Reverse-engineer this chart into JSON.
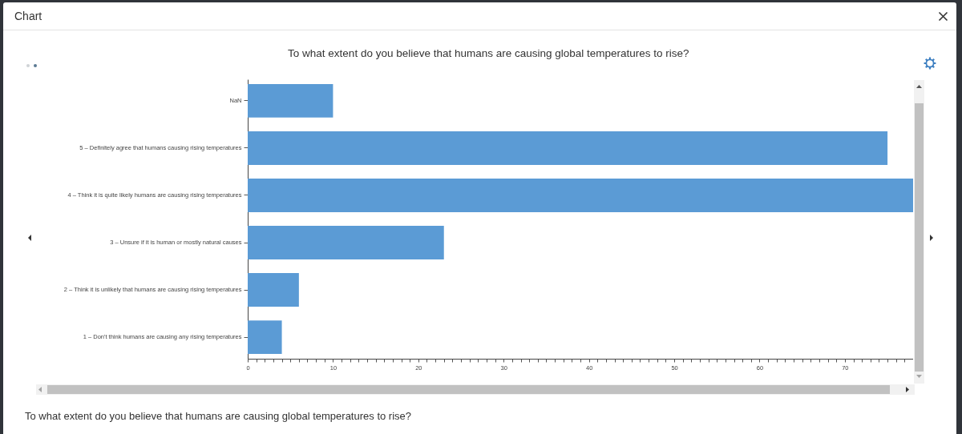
{
  "chart_data": {
    "type": "bar",
    "orientation": "horizontal",
    "title": "To what extent do you believe that humans are causing global temperatures to rise?",
    "annotations": [
      "Chart",
      "To what extent do you believe that humans are causing global temperatures to rise?"
    ],
    "categories": [
      "NaN",
      "5 – Definitely agree that humans causing rising temperatures",
      "4 – Think it is quite likely humans are causing rising temperatures",
      "3 – Unsure if it is human or mostly natural causes",
      "2 – Think it is unlikely that humans are causing rising temperatures",
      "1 – Don't think humans are causing any rising temperatures"
    ],
    "values": [
      10,
      75,
      78,
      23,
      6,
      4
    ],
    "color": "#5b9bd5",
    "xlim": [
      0,
      78
    ],
    "xticks": [
      0,
      {
        "value": 1,
        "label": null
      },
      {
        "value": 2,
        "label": null
      },
      {
        "value": 3,
        "label": null
      },
      {
        "value": 4,
        "label": null
      },
      {
        "value": 5,
        "label": null
      },
      {
        "value": 6,
        "label": null
      },
      {
        "value": 7,
        "label": null
      },
      {
        "value": 8,
        "label": null
      },
      {
        "value": 9,
        "label": null
      },
      10,
      {
        "value": 11,
        "label": null
      },
      {
        "value": 12,
        "label": null
      },
      {
        "value": 13,
        "label": null
      },
      {
        "value": 14,
        "label": null
      },
      {
        "value": 15,
        "label": null
      },
      {
        "value": 16,
        "label": null
      },
      {
        "value": 17,
        "label": null
      },
      {
        "value": 18,
        "label": null
      },
      {
        "value": 19,
        "label": null
      },
      20,
      {
        "value": 21,
        "label": null
      },
      {
        "value": 22,
        "label": null
      },
      {
        "value": 23,
        "label": null
      },
      {
        "value": 24,
        "label": null
      },
      {
        "value": 25,
        "label": null
      },
      {
        "value": 26,
        "label": null
      },
      {
        "value": 27,
        "label": null
      },
      {
        "value": 28,
        "label": null
      },
      {
        "value": 29,
        "label": null
      },
      30,
      {
        "value": 31,
        "label": null
      },
      {
        "value": 32,
        "label": null
      },
      {
        "value": 33,
        "label": null
      },
      {
        "value": 34,
        "label": null
      },
      {
        "value": 35,
        "label": null
      },
      {
        "value": 36,
        "label": null
      },
      {
        "value": 37,
        "label": null
      },
      {
        "value": 38,
        "label": null
      },
      {
        "value": 39,
        "label": null
      },
      40,
      {
        "value": 41,
        "label": null
      },
      {
        "value": 42,
        "label": null
      },
      {
        "value": 43,
        "label": null
      },
      {
        "value": 44,
        "label": null
      },
      {
        "value": 45,
        "label": null
      },
      {
        "value": 46,
        "label": null
      },
      {
        "value": 47,
        "label": null
      },
      {
        "value": 48,
        "label": null
      },
      {
        "value": 49,
        "label": null
      },
      50,
      {
        "value": 51,
        "label": null
      },
      {
        "value": 52,
        "label": null
      },
      {
        "value": 53,
        "label": null
      },
      {
        "value": 54,
        "label": null
      },
      {
        "value": 55,
        "label": null
      },
      {
        "value": 56,
        "label": null
      },
      {
        "value": 57,
        "label": null
      },
      {
        "value": 58,
        "label": null
      },
      {
        "value": 59,
        "label": null
      },
      60,
      {
        "value": 61,
        "label": null
      },
      {
        "value": 62,
        "label": null
      },
      {
        "value": 63,
        "label": null
      },
      {
        "value": 64,
        "label": null
      },
      {
        "value": 65,
        "label": null
      },
      {
        "value": 66,
        "label": null
      },
      {
        "value": 67,
        "label": null
      },
      {
        "value": 68,
        "label": null
      },
      {
        "value": 69,
        "label": null
      },
      70,
      {
        "value": 71,
        "label": null
      },
      {
        "value": 72,
        "label": null
      },
      {
        "value": 73,
        "label": null
      },
      {
        "value": 74,
        "label": null
      },
      {
        "value": 75,
        "label": null
      },
      {
        "value": 76,
        "label": null
      },
      {
        "value": 77,
        "label": null
      },
      {
        "value": 78,
        "label": null
      }
    ]
  }
}
